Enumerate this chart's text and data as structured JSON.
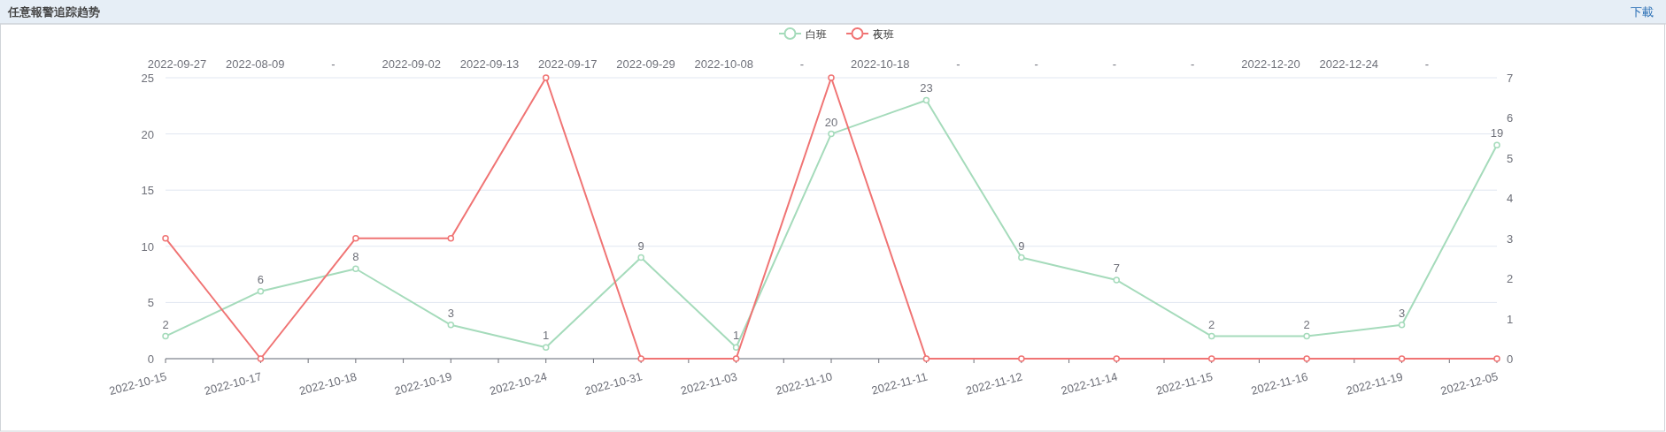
{
  "chart_data": {
    "type": "line",
    "title": "任意報警追踪趋势",
    "annotations": [
      "下載",
      "2022-09-27",
      "2022-08-09",
      "-",
      "2022-09-02",
      "2022-09-13",
      "2022-09-17",
      "2022-09-29",
      "2022-10-08",
      "-",
      "2022-10-18",
      "-",
      "-",
      "-",
      "-",
      "2022-12-20",
      "2022-12-24",
      "-"
    ],
    "categories": [
      "2022-10-15",
      "2022-10-17",
      "2022-10-18",
      "2022-10-19",
      "2022-10-24",
      "2022-10-31",
      "2022-11-03",
      "2022-11-10",
      "2022-11-11",
      "2022-11-12",
      "2022-11-14",
      "2022-11-15",
      "2022-11-16",
      "2022-11-19",
      "2022-12-05"
    ],
    "series": [
      {
        "name": "白班",
        "color": "#a5dbbb",
        "values": [
          2,
          6,
          8,
          3,
          1,
          9,
          1,
          20,
          23,
          9,
          7,
          2,
          2,
          3,
          19
        ],
        "data_labels": true
      },
      {
        "name": "夜班",
        "color": "#f07474",
        "axis": "y2",
        "values": [
          3,
          0,
          3,
          3,
          7,
          0,
          0,
          7,
          0,
          0,
          0,
          0,
          0,
          0,
          0
        ]
      }
    ],
    "ylim": [
      0,
      25
    ],
    "yticks": [
      0,
      5,
      10,
      15,
      20,
      25
    ],
    "y2lim": [
      0,
      7
    ],
    "y2ticks": [
      0,
      1,
      2,
      3,
      4,
      5,
      6,
      7
    ],
    "grid": "y",
    "legend": "top",
    "marker": "circle",
    "line_style": "solid"
  }
}
